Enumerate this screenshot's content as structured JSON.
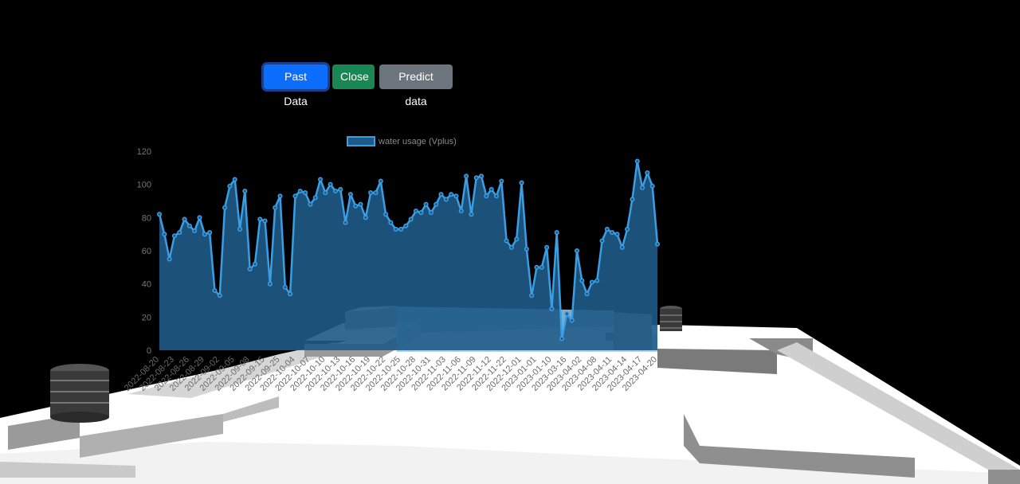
{
  "toolbar": {
    "past_label": "Past Data",
    "close_label": "Close",
    "predict_label": "Predict data"
  },
  "colors": {
    "line": "#3a9ee4",
    "fill": "#1f5a86",
    "button_primary": "#0d6efd",
    "button_success": "#198754",
    "button_secondary": "#6c757d",
    "scene_surface": "#ffffff",
    "building_glass": "#8ecdf5"
  },
  "chart_data": {
    "type": "area",
    "legend": [
      "water usage (Vplus)"
    ],
    "legend_position": "top",
    "ylim": [
      0,
      120
    ],
    "yticks": [
      0,
      20,
      40,
      60,
      80,
      100,
      120
    ],
    "grid": false,
    "xtick_labels": [
      "2022-08-20",
      "2022-08-23",
      "2022-08-26",
      "2022-08-29",
      "2022-09-02",
      "2022-09-05",
      "2022-09-08",
      "2022-09-15",
      "2022-09-25",
      "2022-10-04",
      "2022-10-07",
      "2022-10-10",
      "2022-10-13",
      "2022-10-16",
      "2022-10-19",
      "2022-10-22",
      "2022-10-25",
      "2022-10-28",
      "2022-10-31",
      "2022-11-03",
      "2022-11-06",
      "2022-11-09",
      "2022-11-12",
      "2022-11-22",
      "2022-12-01",
      "2023-01-01",
      "2023-01-10",
      "2023-03-16",
      "2023-04-02",
      "2023-04-08",
      "2023-04-11",
      "2023-04-14",
      "2023-04-17",
      "2023-04-20"
    ],
    "series": [
      {
        "name": "water usage (Vplus)",
        "values": [
          82,
          70,
          55,
          69,
          71,
          79,
          75,
          72,
          80,
          70,
          71,
          36,
          33,
          86,
          99,
          103,
          73,
          96,
          49,
          52,
          79,
          78,
          40,
          86,
          93,
          38,
          34,
          93,
          96,
          95,
          88,
          92,
          103,
          95,
          100,
          96,
          97,
          77,
          94,
          87,
          88,
          80,
          95,
          95,
          102,
          82,
          77,
          73,
          73,
          75,
          79,
          84,
          83,
          88,
          83,
          88,
          94,
          91,
          94,
          93,
          84,
          105,
          82,
          104,
          105,
          93,
          97,
          93,
          102,
          66,
          62,
          67,
          101,
          61,
          33,
          50,
          50,
          62,
          25,
          71,
          7,
          22,
          18,
          60,
          42,
          34,
          41,
          42,
          66,
          73,
          71,
          70,
          62,
          73,
          91,
          114,
          98,
          107,
          99,
          64
        ]
      }
    ]
  }
}
